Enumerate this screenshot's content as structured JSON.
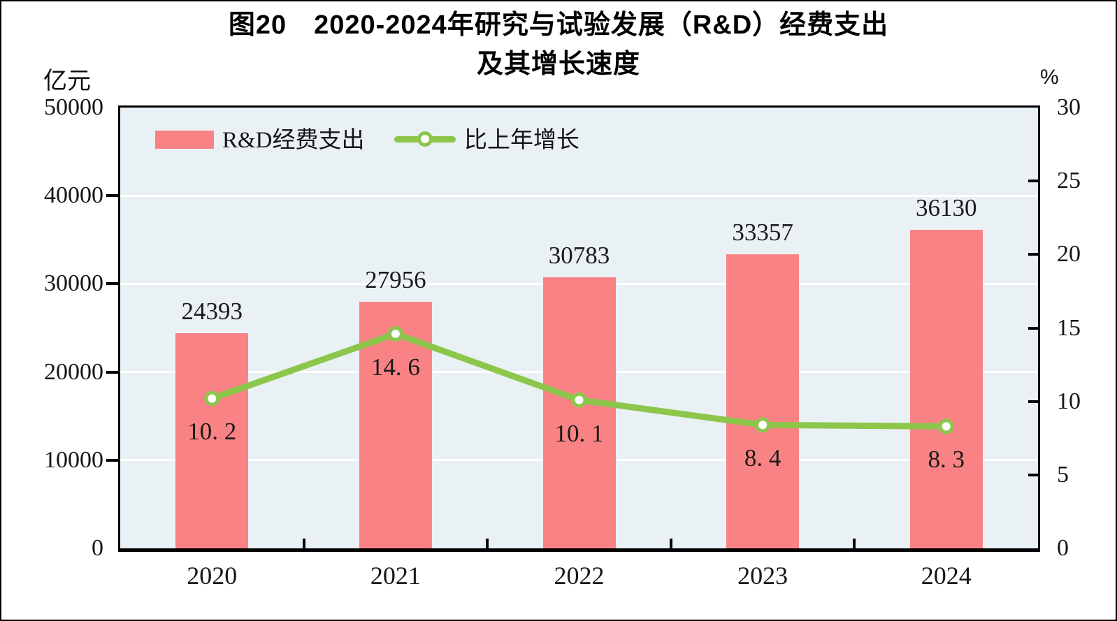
{
  "window": {
    "background": "#ffffff",
    "border_color": "#000000"
  },
  "title": {
    "line1": "图20　2020-2024年研究与试验发展（R&D）经费支出",
    "line2": "及其增长速度"
  },
  "axis_units": {
    "left": "亿元",
    "right": "%"
  },
  "legend": {
    "position": "top-left-inside-plot",
    "items": [
      {
        "label": "R&D经费支出",
        "marker": "bar-swatch",
        "color": "#F98384"
      },
      {
        "label": "比上年增长",
        "marker": "line-circle",
        "color": "#8CC64B"
      }
    ]
  },
  "chart_data": {
    "type": "combo-bar-line",
    "title": "图20　2020-2024年研究与试验发展（R&D）经费支出及其增长速度",
    "categories": [
      "2020",
      "2021",
      "2022",
      "2023",
      "2024"
    ],
    "series": [
      {
        "name": "R&D经费支出",
        "type": "bar",
        "axis": "left",
        "color": "#F98384",
        "values": [
          24393,
          27956,
          30783,
          33357,
          36130
        ],
        "data_labels": [
          "24393",
          "27956",
          "30783",
          "33357",
          "36130"
        ]
      },
      {
        "name": "比上年增长",
        "type": "line",
        "axis": "right",
        "color": "#8CC64B",
        "marker": "circle-white-fill-green-ring",
        "values": [
          10.2,
          14.6,
          10.1,
          8.4,
          8.3
        ],
        "data_labels": [
          "10. 2",
          "14. 6",
          "10. 1",
          "8. 4",
          "8. 3"
        ]
      }
    ],
    "left_axis": {
      "label": "亿元",
      "min": 0,
      "max": 50000,
      "ticks": [
        0,
        10000,
        20000,
        30000,
        40000,
        50000
      ]
    },
    "right_axis": {
      "label": "%",
      "min": 0,
      "max": 30,
      "ticks": [
        0,
        5,
        10,
        15,
        20,
        25,
        30
      ]
    },
    "grid": {
      "horizontal": true,
      "color": "#ffffff",
      "at_left_axis_ticks": true
    },
    "plot_background": "#EAF1F5"
  }
}
